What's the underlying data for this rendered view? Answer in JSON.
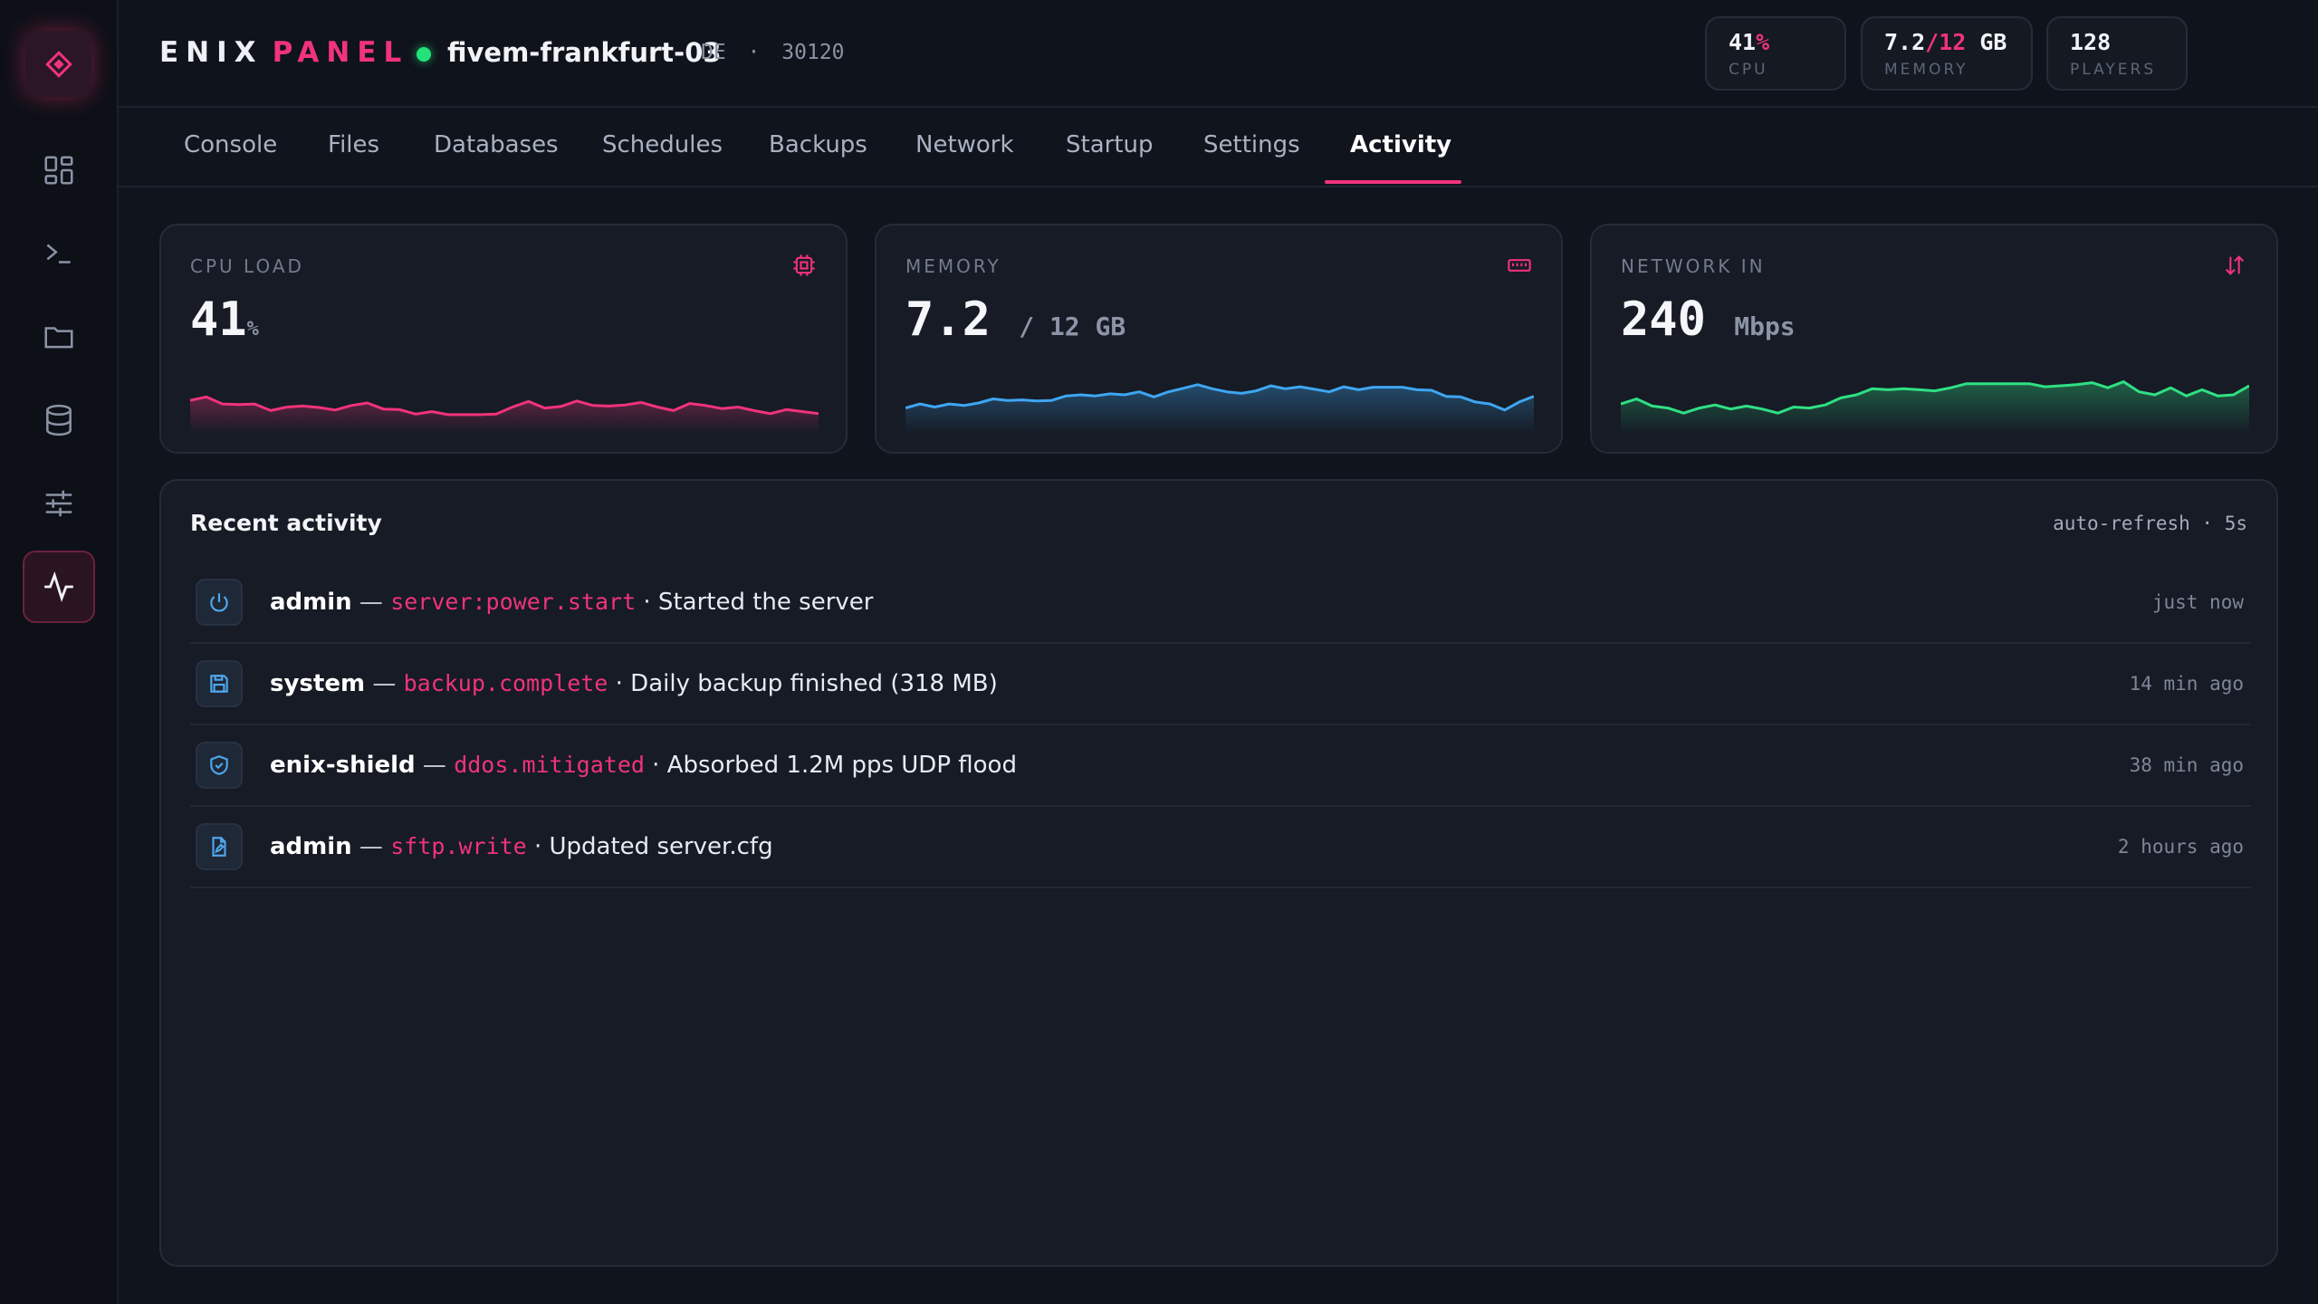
{
  "brand": {
    "word1": "ENIX",
    "word2": "PANEL"
  },
  "server": {
    "name": "fivem-frankfurt-03",
    "region": "DE",
    "port": "30120",
    "status": "online",
    "separator": "·"
  },
  "header_stats": [
    {
      "value": "41",
      "suffix": "%",
      "label": "CPU"
    },
    {
      "value": "7.2",
      "suffix": "/12",
      "unit": "GB",
      "label": "MEMORY"
    },
    {
      "value": "128",
      "label": "PLAYERS"
    }
  ],
  "language": "EN",
  "sidebar": {
    "items": [
      {
        "name": "dashboard",
        "icon": "grid-icon"
      },
      {
        "name": "console",
        "icon": "terminal-icon"
      },
      {
        "name": "files",
        "icon": "folder-icon"
      },
      {
        "name": "databases",
        "icon": "database-icon"
      },
      {
        "name": "settings",
        "icon": "sliders-icon"
      },
      {
        "name": "activity",
        "icon": "activity-icon",
        "active": true
      }
    ]
  },
  "tabs": [
    {
      "label": "Console"
    },
    {
      "label": "Files"
    },
    {
      "label": "Databases"
    },
    {
      "label": "Schedules"
    },
    {
      "label": "Backups"
    },
    {
      "label": "Network"
    },
    {
      "label": "Startup"
    },
    {
      "label": "Settings"
    },
    {
      "label": "Activity",
      "active": true
    }
  ],
  "metrics": {
    "cpu": {
      "label": "CPU LOAD",
      "value": "41",
      "unit": "%",
      "icon": "cpu-icon",
      "color": "#f0337a",
      "series": [
        0.55,
        0.62,
        0.48,
        0.47,
        0.48,
        0.35,
        0.42,
        0.44,
        0.41,
        0.36,
        0.45,
        0.5,
        0.38,
        0.37,
        0.28,
        0.33,
        0.27,
        0.27,
        0.27,
        0.28,
        0.42,
        0.53,
        0.4,
        0.43,
        0.54,
        0.45,
        0.44,
        0.46,
        0.51,
        0.42,
        0.35,
        0.49,
        0.45,
        0.39,
        0.42,
        0.35,
        0.29,
        0.37,
        0.33,
        0.29
      ]
    },
    "memory": {
      "label": "MEMORY",
      "value": "7.2",
      "unit": "/ 12 GB",
      "icon": "ram-icon",
      "color": "#3ea6f2",
      "series": [
        0.4,
        0.48,
        0.42,
        0.48,
        0.45,
        0.5,
        0.58,
        0.55,
        0.56,
        0.54,
        0.55,
        0.64,
        0.66,
        0.64,
        0.68,
        0.66,
        0.72,
        0.62,
        0.72,
        0.79,
        0.86,
        0.78,
        0.72,
        0.69,
        0.74,
        0.84,
        0.78,
        0.82,
        0.77,
        0.72,
        0.82,
        0.76,
        0.81,
        0.81,
        0.81,
        0.76,
        0.75,
        0.63,
        0.62,
        0.52,
        0.48,
        0.36,
        0.52,
        0.63
      ]
    },
    "network": {
      "label": "NETWORK IN",
      "value": "240",
      "unit": "Mbps",
      "icon": "transfer-icon",
      "color": "#2fe083",
      "series": [
        0.48,
        0.58,
        0.44,
        0.4,
        0.3,
        0.4,
        0.46,
        0.38,
        0.44,
        0.38,
        0.3,
        0.42,
        0.4,
        0.46,
        0.6,
        0.66,
        0.78,
        0.76,
        0.78,
        0.76,
        0.74,
        0.8,
        0.88,
        0.88,
        0.88,
        0.88,
        0.88,
        0.82,
        0.84,
        0.86,
        0.9,
        0.8,
        0.92,
        0.72,
        0.66,
        0.8,
        0.64,
        0.76,
        0.64,
        0.66,
        0.84
      ]
    }
  },
  "activity": {
    "title": "Recent activity",
    "refresh": "auto-refresh · 5s",
    "rows": [
      {
        "icon": "power-icon",
        "actor": "admin",
        "sep": " — ",
        "event": "server:power.start",
        "message": " · Started the server",
        "time": "just now"
      },
      {
        "icon": "save-icon",
        "actor": "system",
        "sep": " — ",
        "event": "backup.complete",
        "message": " · Daily backup finished (318 MB)",
        "time": "14 min ago"
      },
      {
        "icon": "shield-icon",
        "actor": "enix-shield",
        "sep": " — ",
        "event": "ddos.mitigated",
        "message": " · Absorbed 1.2M pps UDP flood",
        "time": "38 min ago"
      },
      {
        "icon": "file-edit-icon",
        "actor": "admin",
        "sep": " — ",
        "event": "sftp.write",
        "message": " · Updated server.cfg",
        "time": "2 hours ago"
      }
    ]
  },
  "colors": {
    "accent": "#f0337a",
    "online": "#22e27a",
    "info": "#4ea7ec",
    "background": "#10141d"
  }
}
